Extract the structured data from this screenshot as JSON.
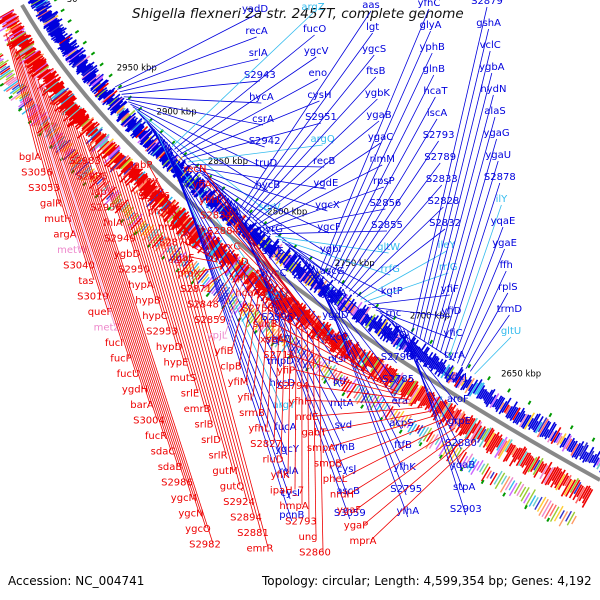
{
  "title": "Shigella flexneri 2a str. 2457T, complete genome",
  "footer": {
    "accession": "Accession: NC_004741",
    "stats": "Topology: circular; Length: 4,599,354 bp; Genes: 4,192"
  },
  "colors": {
    "forward": "#0000dd",
    "reverse": "#ee0000",
    "rna": "#33bbee",
    "trna": "#ee88cc",
    "backbone": "#888888",
    "tick": "#009900"
  },
  "scale_labels": [
    "30",
    "2950 kbp",
    "2900 kbp",
    "2850 kbp",
    "2800 kbp",
    "2750 kbp",
    "2700 kbp",
    "2650 kbp"
  ],
  "blue_labels": [
    "yadD",
    "recA",
    "srlA",
    "S2943",
    "hycA",
    "csrA",
    "S2942",
    "truD",
    "hycB",
    "serV",
    "pyrG",
    "surE",
    "hycC",
    "argV",
    "S2996",
    "ygcQ",
    "mlpD",
    "hycD",
    "argY",
    "fucA",
    "ygcY",
    "relA",
    "cysI",
    "pcnB",
    "argZ",
    "fucO",
    "ygcV",
    "eno",
    "cysH",
    "S2951",
    "argQ",
    "recB",
    "ygdE",
    "ygcX",
    "ygcF",
    "ygbI",
    "ascG",
    "ygaA",
    "ygdD",
    "recC",
    "ptsP",
    "ptr",
    "mltA",
    "svd",
    "rlnB",
    "cysJ",
    "ascB",
    "S3059",
    "aas",
    "lgt",
    "ygcS",
    "ftsB",
    "ygbK",
    "ygaB",
    "ygaC",
    "rimM",
    "rpsP",
    "S2856",
    "S2855",
    "gltW",
    "rrfG",
    "kgtP",
    "rnc",
    "recO",
    "S2796",
    "S2785",
    "era",
    "acpS",
    "ftfB",
    "yfhK",
    "S2795",
    "yfhA",
    "yfhC",
    "glyA",
    "yphB",
    "glnB",
    "hcaT",
    "iscA",
    "S2793",
    "S2789",
    "S2833",
    "S2828",
    "S2832",
    "ileY",
    "rrlG",
    "yfiF",
    "yfiD",
    "yfiC",
    "tyrA",
    "pdxJ",
    "aroF",
    "grpE",
    "S2880",
    "yqaB",
    "stpA",
    "S2903",
    "S2879",
    "gshA",
    "vclC",
    "ygbA",
    "hydN",
    "alaS",
    "ygaG",
    "ygaU",
    "S2878",
    "ilY",
    "yqaE",
    "ygaE",
    "ffh",
    "rplS",
    "trmD",
    "gltU"
  ],
  "red_labels": [
    "bglA",
    "S3056",
    "S3053",
    "galR",
    "mutH",
    "argA",
    "metW",
    "S3040",
    "tas",
    "S3019",
    "queF",
    "metZ",
    "fucI",
    "fucP",
    "fucU",
    "ygdH",
    "barA",
    "S3004",
    "fucR",
    "sdaC",
    "sdaB",
    "S2986",
    "ygcM",
    "ygcN",
    "ygcO",
    "S2982",
    "S2983",
    "S2985",
    "iap",
    "S2956",
    "fhlA",
    "S2949",
    "ygbD",
    "S2950",
    "hypA",
    "hypB",
    "hypC",
    "S2953",
    "hypD",
    "hypE",
    "mutS",
    "srlE",
    "emrB",
    "srlB",
    "srlD",
    "srlR",
    "gutM",
    "gutQ",
    "S2924",
    "S2894",
    "S2881",
    "emrR",
    "gabP",
    "prov",
    "S2896",
    "proW",
    "nrdI",
    "S2870",
    "ygaE",
    "proX",
    "S2871",
    "S2848",
    "S2859",
    "ypjL",
    "yfiB",
    "clpB",
    "yfiM",
    "yfiI",
    "srmB",
    "yfhL",
    "S2827",
    "rluD",
    "yfiK",
    "ipaH_7",
    "hmpA",
    "S2793",
    "ung",
    "S2860",
    "recN",
    "yfiA",
    "yfiH",
    "S2834",
    "S2884",
    "trxC",
    "yfhD",
    "yphH",
    "hcaA2",
    "S2753",
    "suhB",
    "xseA",
    "S2711",
    "yfiP",
    "S2794",
    "yfhH",
    "nrdE",
    "gabT",
    "smpA",
    "smpB",
    "pheL",
    "nrdH",
    "ygaF",
    "ygaP",
    "mprA"
  ]
}
